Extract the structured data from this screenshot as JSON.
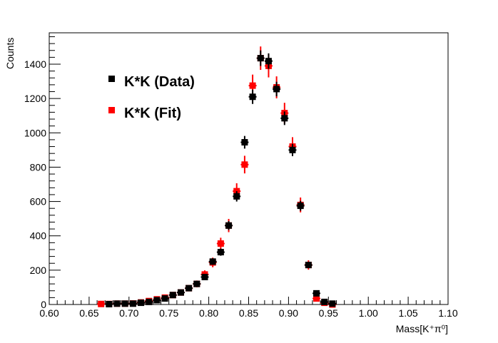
{
  "chart_data": {
    "type": "scatter",
    "title": "",
    "xlabel": "Mass[K⁺π⁰]",
    "ylabel": "Counts",
    "xlim": [
      0.6,
      1.1
    ],
    "ylim": [
      0,
      1580
    ],
    "xticks": [
      "0.60",
      "0.65",
      "0.70",
      "0.75",
      "0.80",
      "0.85",
      "0.90",
      "0.95",
      "1.00",
      "1.05",
      "1.10"
    ],
    "yticks": [
      "0",
      "200",
      "400",
      "600",
      "800",
      "1000",
      "1200",
      "1400"
    ],
    "legend_position": "top-left",
    "x": [
      0.665,
      0.675,
      0.685,
      0.695,
      0.705,
      0.715,
      0.725,
      0.735,
      0.745,
      0.755,
      0.765,
      0.775,
      0.785,
      0.795,
      0.805,
      0.815,
      0.825,
      0.835,
      0.845,
      0.855,
      0.865,
      0.875,
      0.885,
      0.895,
      0.905,
      0.915,
      0.925,
      0.935,
      0.945,
      0.955
    ],
    "series": [
      {
        "name": "K*K (Fit)",
        "color": "#ff0000",
        "values": [
          3,
          3,
          5,
          5,
          6,
          12,
          20,
          30,
          40,
          55,
          70,
          95,
          120,
          175,
          245,
          355,
          460,
          660,
          815,
          1275,
          1435,
          1390,
          1265,
          1115,
          920,
          580,
          230,
          35,
          10,
          0
        ]
      },
      {
        "name": "K*K (Data)",
        "color": "#000000",
        "values": [
          0,
          2,
          5,
          5,
          5,
          10,
          15,
          25,
          35,
          55,
          70,
          95,
          120,
          160,
          250,
          305,
          460,
          630,
          945,
          1210,
          1435,
          1418,
          1255,
          1085,
          900,
          575,
          230,
          65,
          15,
          5
        ]
      }
    ]
  }
}
